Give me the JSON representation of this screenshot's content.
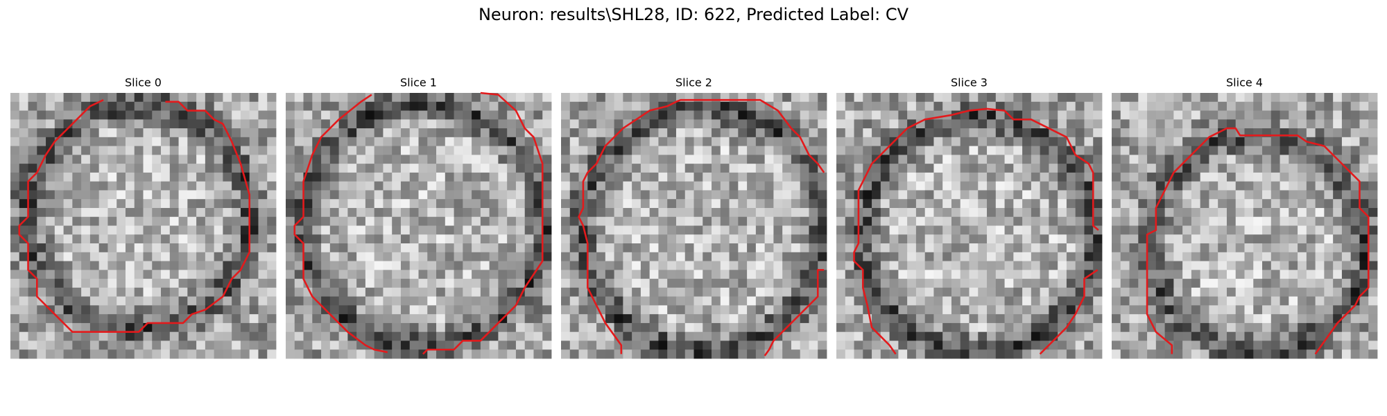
{
  "title": "Neuron: results\\SHL28, ID: 622, Predicted Label: CV",
  "panels": [
    {
      "title": "Slice 0"
    },
    {
      "title": "Slice 1"
    },
    {
      "title": "Slice 2"
    },
    {
      "title": "Slice 3"
    },
    {
      "title": "Slice 4"
    }
  ]
}
